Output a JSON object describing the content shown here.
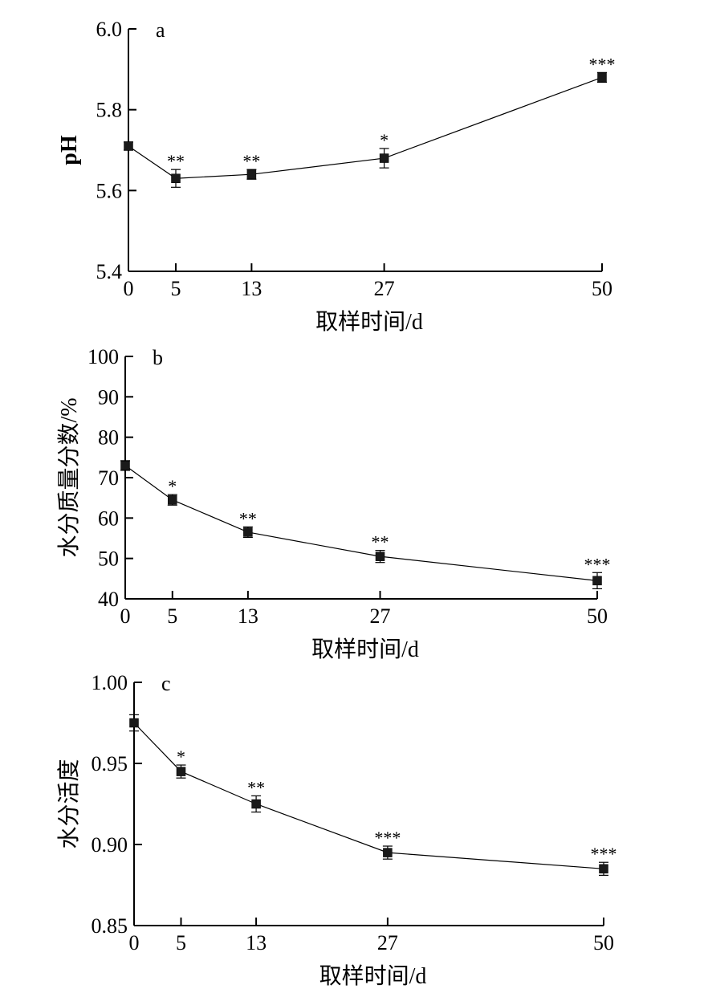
{
  "chart_data": [
    {
      "type": "line",
      "panel_label": "a",
      "ylabel": "pH",
      "xlabel": "取样时间/d",
      "xlim": [
        0,
        50
      ],
      "ylim": [
        5.4,
        6.0
      ],
      "xticks": [
        "0",
        "5",
        "13",
        "27",
        "50"
      ],
      "yticks": [
        "5.4",
        "5.6",
        "5.8",
        "6.0"
      ],
      "x": [
        0,
        5,
        13,
        27,
        50
      ],
      "values": [
        5.71,
        5.63,
        5.64,
        5.68,
        5.88
      ],
      "errors": [
        0.01,
        0.022,
        0.012,
        0.024,
        0.012
      ],
      "annotations": [
        "",
        "**",
        "**",
        "*",
        "***"
      ],
      "grid": false
    },
    {
      "type": "line",
      "panel_label": "b",
      "ylabel": "水分质量分数/%",
      "xlabel": "取样时间/d",
      "xlim": [
        0,
        50
      ],
      "ylim": [
        40,
        100
      ],
      "xticks": [
        "0",
        "5",
        "13",
        "27",
        "50"
      ],
      "yticks": [
        "40",
        "50",
        "60",
        "70",
        "80",
        "90",
        "100"
      ],
      "x": [
        0,
        5,
        13,
        27,
        50
      ],
      "values": [
        73,
        64.5,
        56.5,
        50.5,
        44.5
      ],
      "errors": [
        1.2,
        1.3,
        1.3,
        1.5,
        2
      ],
      "annotations": [
        "",
        "*",
        "**",
        "**",
        "***"
      ],
      "grid": false
    },
    {
      "type": "line",
      "panel_label": "c",
      "ylabel": "水分活度",
      "xlabel": "取样时间/d",
      "xlim": [
        0,
        50
      ],
      "ylim": [
        0.85,
        1.0
      ],
      "xticks": [
        "0",
        "5",
        "13",
        "27",
        "50"
      ],
      "yticks": [
        "0.85",
        "0.90",
        "0.95",
        "1.00"
      ],
      "x": [
        0,
        5,
        13,
        27,
        50
      ],
      "values": [
        0.975,
        0.945,
        0.925,
        0.895,
        0.885
      ],
      "errors": [
        0.005,
        0.004,
        0.005,
        0.004,
        0.004
      ],
      "annotations": [
        "",
        "*",
        "**",
        "***",
        "***"
      ],
      "grid": false
    }
  ]
}
